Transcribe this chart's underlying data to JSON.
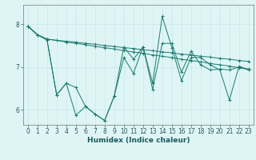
{
  "title": "",
  "xlabel": "Humidex (Indice chaleur)",
  "bg_color": "#dff5f5",
  "grid_color": "#c8e8e8",
  "line_color": "#1a7a6e",
  "spine_color": "#888888",
  "xlim": [
    -0.5,
    23.5
  ],
  "ylim": [
    5.65,
    8.45
  ],
  "yticks": [
    6,
    7,
    8
  ],
  "xticks": [
    0,
    1,
    2,
    3,
    4,
    5,
    6,
    7,
    8,
    9,
    10,
    11,
    12,
    13,
    14,
    15,
    16,
    17,
    18,
    19,
    20,
    21,
    22,
    23
  ],
  "tick_fontsize": 5.5,
  "xlabel_fontsize": 6.5,
  "series": [
    [
      7.95,
      7.75,
      7.65,
      7.62,
      7.6,
      7.58,
      7.55,
      7.53,
      7.5,
      7.48,
      7.45,
      7.43,
      7.4,
      7.38,
      7.35,
      7.33,
      7.3,
      7.28,
      7.25,
      7.23,
      7.2,
      7.18,
      7.15,
      7.13
    ],
    [
      7.95,
      7.75,
      7.65,
      7.62,
      7.58,
      7.55,
      7.52,
      7.48,
      7.45,
      7.42,
      7.38,
      7.35,
      7.32,
      7.28,
      7.25,
      7.22,
      7.18,
      7.15,
      7.12,
      7.08,
      7.05,
      7.02,
      6.98,
      6.95
    ],
    [
      7.95,
      7.75,
      7.63,
      6.35,
      6.62,
      5.87,
      6.08,
      5.9,
      5.75,
      6.32,
      7.22,
      6.85,
      7.47,
      6.62,
      8.18,
      7.45,
      6.68,
      7.22,
      7.22,
      7.05,
      6.93,
      6.23,
      7.02,
      6.93
    ],
    [
      7.95,
      7.75,
      7.63,
      6.35,
      6.62,
      6.52,
      6.08,
      5.9,
      5.75,
      6.32,
      7.47,
      7.18,
      7.47,
      6.48,
      7.55,
      7.55,
      6.88,
      7.37,
      7.05,
      6.93,
      6.95,
      6.93,
      7.0,
      6.93
    ]
  ]
}
